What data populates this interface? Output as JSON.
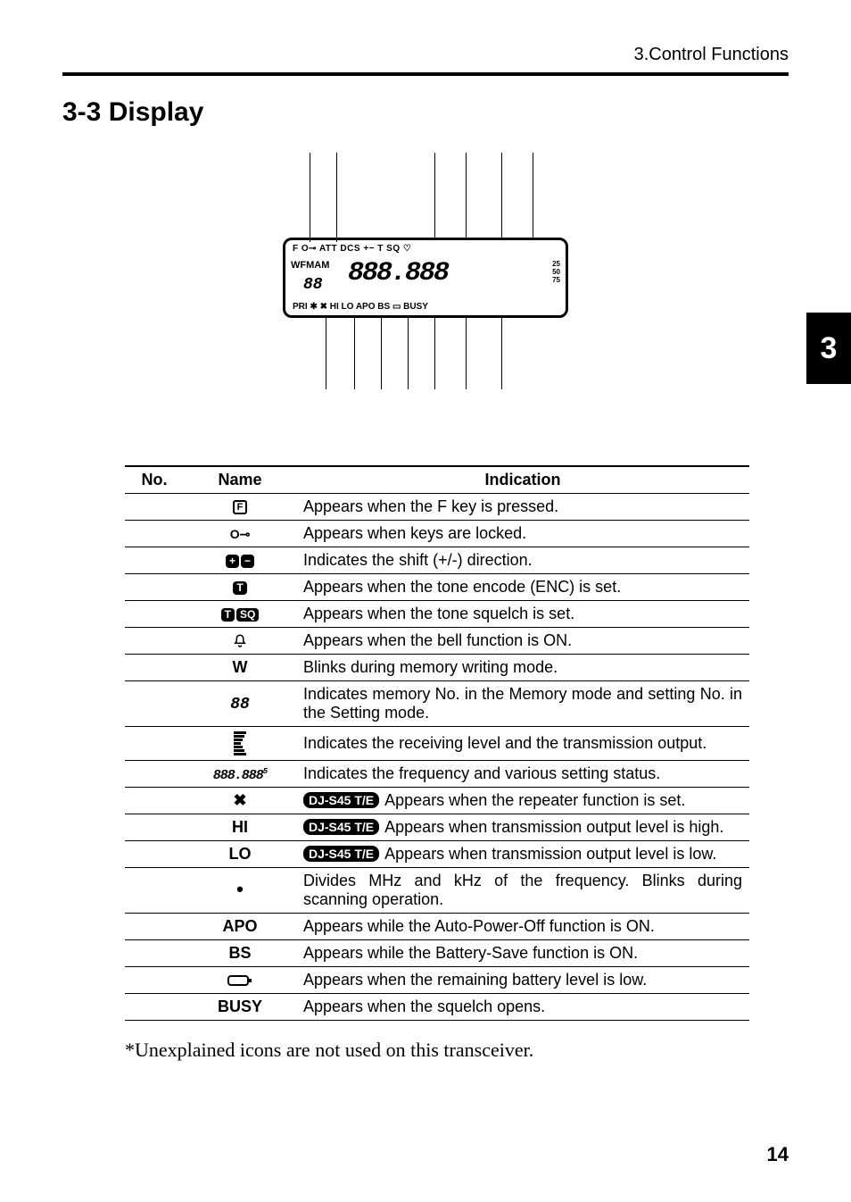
{
  "running_head": "3.Control Functions",
  "section_title": "3-3  Display",
  "chapter_tab": "3",
  "lcd": {
    "top_row": "F   O⊸  ATT DCS     +− T SQ  ♡",
    "mid_left": "WFMAM",
    "seg_small": "88",
    "seg_big": "888.888",
    "side_nums": "25 50 75",
    "bottom_row": "PRI  ✱  ✖  HI  LO  APO  BS   ▭   BUSY"
  },
  "table": {
    "columns": [
      "No.",
      "Name",
      "Indication"
    ],
    "badge_label": "DJ-S45 T/E",
    "rows": [
      {
        "icon": "F",
        "kind": "f",
        "indication": "Appears when the F key is pressed."
      },
      {
        "icon": "O⊸",
        "kind": "key",
        "indication": "Appears when keys are locked."
      },
      {
        "icon": "+−",
        "kind": "shift",
        "indication": "Indicates the shift (+/-) direction."
      },
      {
        "icon": "T",
        "kind": "t",
        "indication": "Appears when the tone encode (ENC) is set."
      },
      {
        "icon": "T SQ",
        "kind": "tsq",
        "indication": "Appears when the tone squelch is set."
      },
      {
        "icon": "bell",
        "kind": "bell",
        "indication": "Appears when the bell function is ON."
      },
      {
        "icon": "W",
        "kind": "bold",
        "indication": "Blinks during memory writing mode."
      },
      {
        "icon": "88",
        "kind": "seg88",
        "indication": "Indicates memory No. in the Memory mode and setting No. in the Setting mode."
      },
      {
        "icon": "bars",
        "kind": "bars",
        "indication": "Indicates the receiving level and the transmission output."
      },
      {
        "icon": "888.888",
        "kind": "seglong",
        "indication": "Indicates the frequency and various setting status."
      },
      {
        "icon": "✖",
        "kind": "bold",
        "badge": true,
        "indication": "Appears when the repeater function is set."
      },
      {
        "icon": "HI",
        "kind": "bold",
        "badge": true,
        "indication": "Appears when transmission output level is high."
      },
      {
        "icon": "LO",
        "kind": "bold",
        "badge": true,
        "indication": "Appears when transmission output level is low."
      },
      {
        "icon": "•",
        "kind": "dot",
        "indication": "Divides MHz and kHz of the frequency.  Blinks during scanning operation."
      },
      {
        "icon": "APO",
        "kind": "bold",
        "indication": "Appears while the Auto-Power-Off function is ON."
      },
      {
        "icon": "BS",
        "kind": "bold",
        "indication": "Appears while the Battery-Save function is ON."
      },
      {
        "icon": "batt",
        "kind": "batt",
        "indication": "Appears when the remaining battery level is low."
      },
      {
        "icon": "BUSY",
        "kind": "bold",
        "indication": "Appears when the squelch opens."
      }
    ]
  },
  "footnote": "*Unexplained icons are not used on this transceiver.",
  "page_number": "14"
}
